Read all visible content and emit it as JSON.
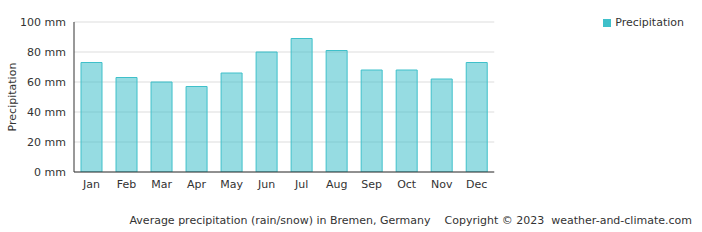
{
  "chart_data": {
    "type": "bar",
    "title": "Average precipitation (rain/snow) in Bremen, Germany",
    "annotations": [
      "Copyright © 2023  weather-and-climate.com"
    ],
    "y_label": "Precipitation",
    "categories": [
      "Jan",
      "Feb",
      "Mar",
      "Apr",
      "May",
      "Jun",
      "Jul",
      "Aug",
      "Sep",
      "Oct",
      "Nov",
      "Dec"
    ],
    "series": [
      {
        "name": "Precipitation",
        "color": "#3fc0ca",
        "values": [
          73,
          63,
          60,
          57,
          66,
          80,
          89,
          81,
          68,
          68,
          62,
          73
        ]
      }
    ],
    "ylim": [
      0,
      100
    ],
    "yticks": [
      {
        "value": 0,
        "label": "0 mm"
      },
      {
        "value": 20,
        "label": "20 mm"
      },
      {
        "value": 40,
        "label": "40 mm"
      },
      {
        "value": 60,
        "label": "60 mm"
      },
      {
        "value": 80,
        "label": "80 mm"
      },
      {
        "value": 100,
        "label": "100 mm"
      }
    ],
    "grid": true,
    "legend": "top-right"
  }
}
